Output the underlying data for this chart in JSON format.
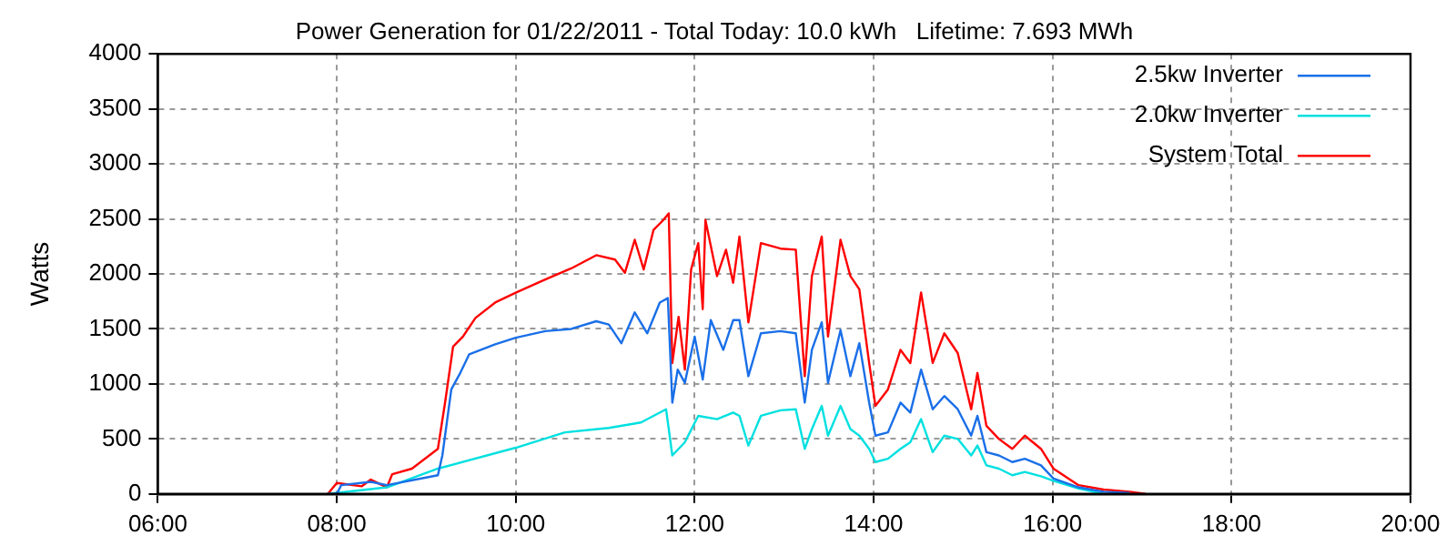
{
  "chart_data": {
    "type": "line",
    "title": "Power Generation for 01/22/2011 - Total Today: 10.0 kWh   Lifetime: 7.693 MWh",
    "ylabel": "Watts",
    "xlim": [
      6,
      20
    ],
    "xticks": [
      {
        "value": 6,
        "label": "06:00"
      },
      {
        "value": 8,
        "label": "08:00"
      },
      {
        "value": 10,
        "label": "10:00"
      },
      {
        "value": 12,
        "label": "12:00"
      },
      {
        "value": 14,
        "label": "14:00"
      },
      {
        "value": 16,
        "label": "16:00"
      },
      {
        "value": 18,
        "label": "18:00"
      },
      {
        "value": 20,
        "label": "20:00"
      }
    ],
    "ylim": [
      0,
      4000
    ],
    "yticks": [
      0,
      500,
      1000,
      1500,
      2000,
      2500,
      3000,
      3500,
      4000
    ],
    "grid": true,
    "legend": "top right",
    "marker": "none",
    "line_style": "solid",
    "series": [
      {
        "name": "2.5kw Inverter",
        "color": "#1a6fe8",
        "x": [
          7.9,
          8.0,
          8.05,
          8.38,
          8.56,
          9.13,
          9.18,
          9.23,
          9.28,
          9.38,
          9.48,
          9.77,
          10.0,
          10.33,
          10.62,
          10.9,
          11.04,
          11.18,
          11.33,
          11.47,
          11.61,
          11.7,
          11.75,
          11.81,
          11.89,
          12.0,
          12.09,
          12.18,
          12.32,
          12.43,
          12.5,
          12.6,
          12.74,
          12.96,
          13.13,
          13.23,
          13.31,
          13.42,
          13.49,
          13.63,
          13.74,
          13.84,
          13.95,
          14.02,
          14.16,
          14.3,
          14.41,
          14.53,
          14.66,
          14.79,
          14.94,
          15.09,
          15.16,
          15.26,
          15.4,
          15.55,
          15.69,
          15.87,
          16.01,
          16.29,
          16.57,
          16.86
        ],
        "values": [
          0,
          0,
          80,
          110,
          80,
          170,
          350,
          650,
          950,
          1100,
          1270,
          1360,
          1420,
          1480,
          1500,
          1570,
          1540,
          1370,
          1650,
          1460,
          1740,
          1780,
          830,
          1130,
          1010,
          1430,
          1040,
          1580,
          1310,
          1580,
          1580,
          1070,
          1460,
          1480,
          1460,
          830,
          1310,
          1560,
          1010,
          1490,
          1070,
          1370,
          830,
          530,
          560,
          830,
          740,
          1130,
          770,
          890,
          770,
          530,
          710,
          380,
          350,
          290,
          320,
          260,
          140,
          60,
          20,
          10
        ]
      },
      {
        "name": "2.0kw Inverter",
        "color": "#00e0e0",
        "x": [
          7.9,
          8.56,
          9.13,
          10.0,
          10.55,
          11.04,
          11.4,
          11.68,
          11.75,
          11.89,
          12.04,
          12.25,
          12.43,
          12.5,
          12.6,
          12.74,
          12.96,
          13.13,
          13.23,
          13.31,
          13.42,
          13.49,
          13.63,
          13.74,
          13.84,
          13.95,
          14.02,
          14.16,
          14.3,
          14.41,
          14.53,
          14.66,
          14.79,
          14.94,
          15.09,
          15.16,
          15.26,
          15.4,
          15.55,
          15.69,
          15.87,
          16.01,
          16.29,
          16.57
        ],
        "values": [
          0,
          60,
          230,
          420,
          560,
          600,
          650,
          770,
          350,
          470,
          710,
          680,
          740,
          710,
          440,
          710,
          760,
          770,
          410,
          590,
          800,
          530,
          800,
          590,
          530,
          410,
          290,
          320,
          410,
          470,
          680,
          380,
          530,
          500,
          350,
          440,
          260,
          230,
          170,
          200,
          160,
          120,
          50,
          0
        ]
      },
      {
        "name": "System Total",
        "color": "#ff0000",
        "x": [
          7.9,
          8.0,
          8.28,
          8.38,
          8.56,
          8.62,
          8.84,
          9.13,
          9.21,
          9.3,
          9.41,
          9.55,
          9.77,
          10.0,
          10.33,
          10.62,
          10.9,
          11.11,
          11.22,
          11.33,
          11.43,
          11.54,
          11.65,
          11.71,
          11.75,
          11.82,
          11.89,
          11.96,
          12.04,
          12.09,
          12.12,
          12.25,
          12.35,
          12.43,
          12.5,
          12.6,
          12.74,
          12.96,
          13.13,
          13.23,
          13.31,
          13.42,
          13.49,
          13.63,
          13.74,
          13.84,
          13.95,
          14.02,
          14.16,
          14.3,
          14.41,
          14.53,
          14.66,
          14.79,
          14.94,
          15.09,
          15.16,
          15.26,
          15.4,
          15.55,
          15.69,
          15.87,
          16.01,
          16.29,
          16.57,
          16.86,
          17.04
        ],
        "values": [
          0,
          100,
          70,
          130,
          60,
          180,
          230,
          410,
          830,
          1340,
          1430,
          1600,
          1740,
          1830,
          1950,
          2050,
          2170,
          2130,
          2010,
          2310,
          2040,
          2400,
          2490,
          2550,
          1190,
          1610,
          1130,
          2040,
          2280,
          1680,
          2490,
          1980,
          2220,
          1920,
          2340,
          1560,
          2280,
          2230,
          2220,
          1070,
          1980,
          2340,
          1430,
          2310,
          1980,
          1860,
          1190,
          800,
          950,
          1310,
          1190,
          1830,
          1190,
          1460,
          1280,
          770,
          1100,
          620,
          500,
          410,
          530,
          410,
          230,
          80,
          40,
          20,
          0
        ]
      }
    ]
  }
}
